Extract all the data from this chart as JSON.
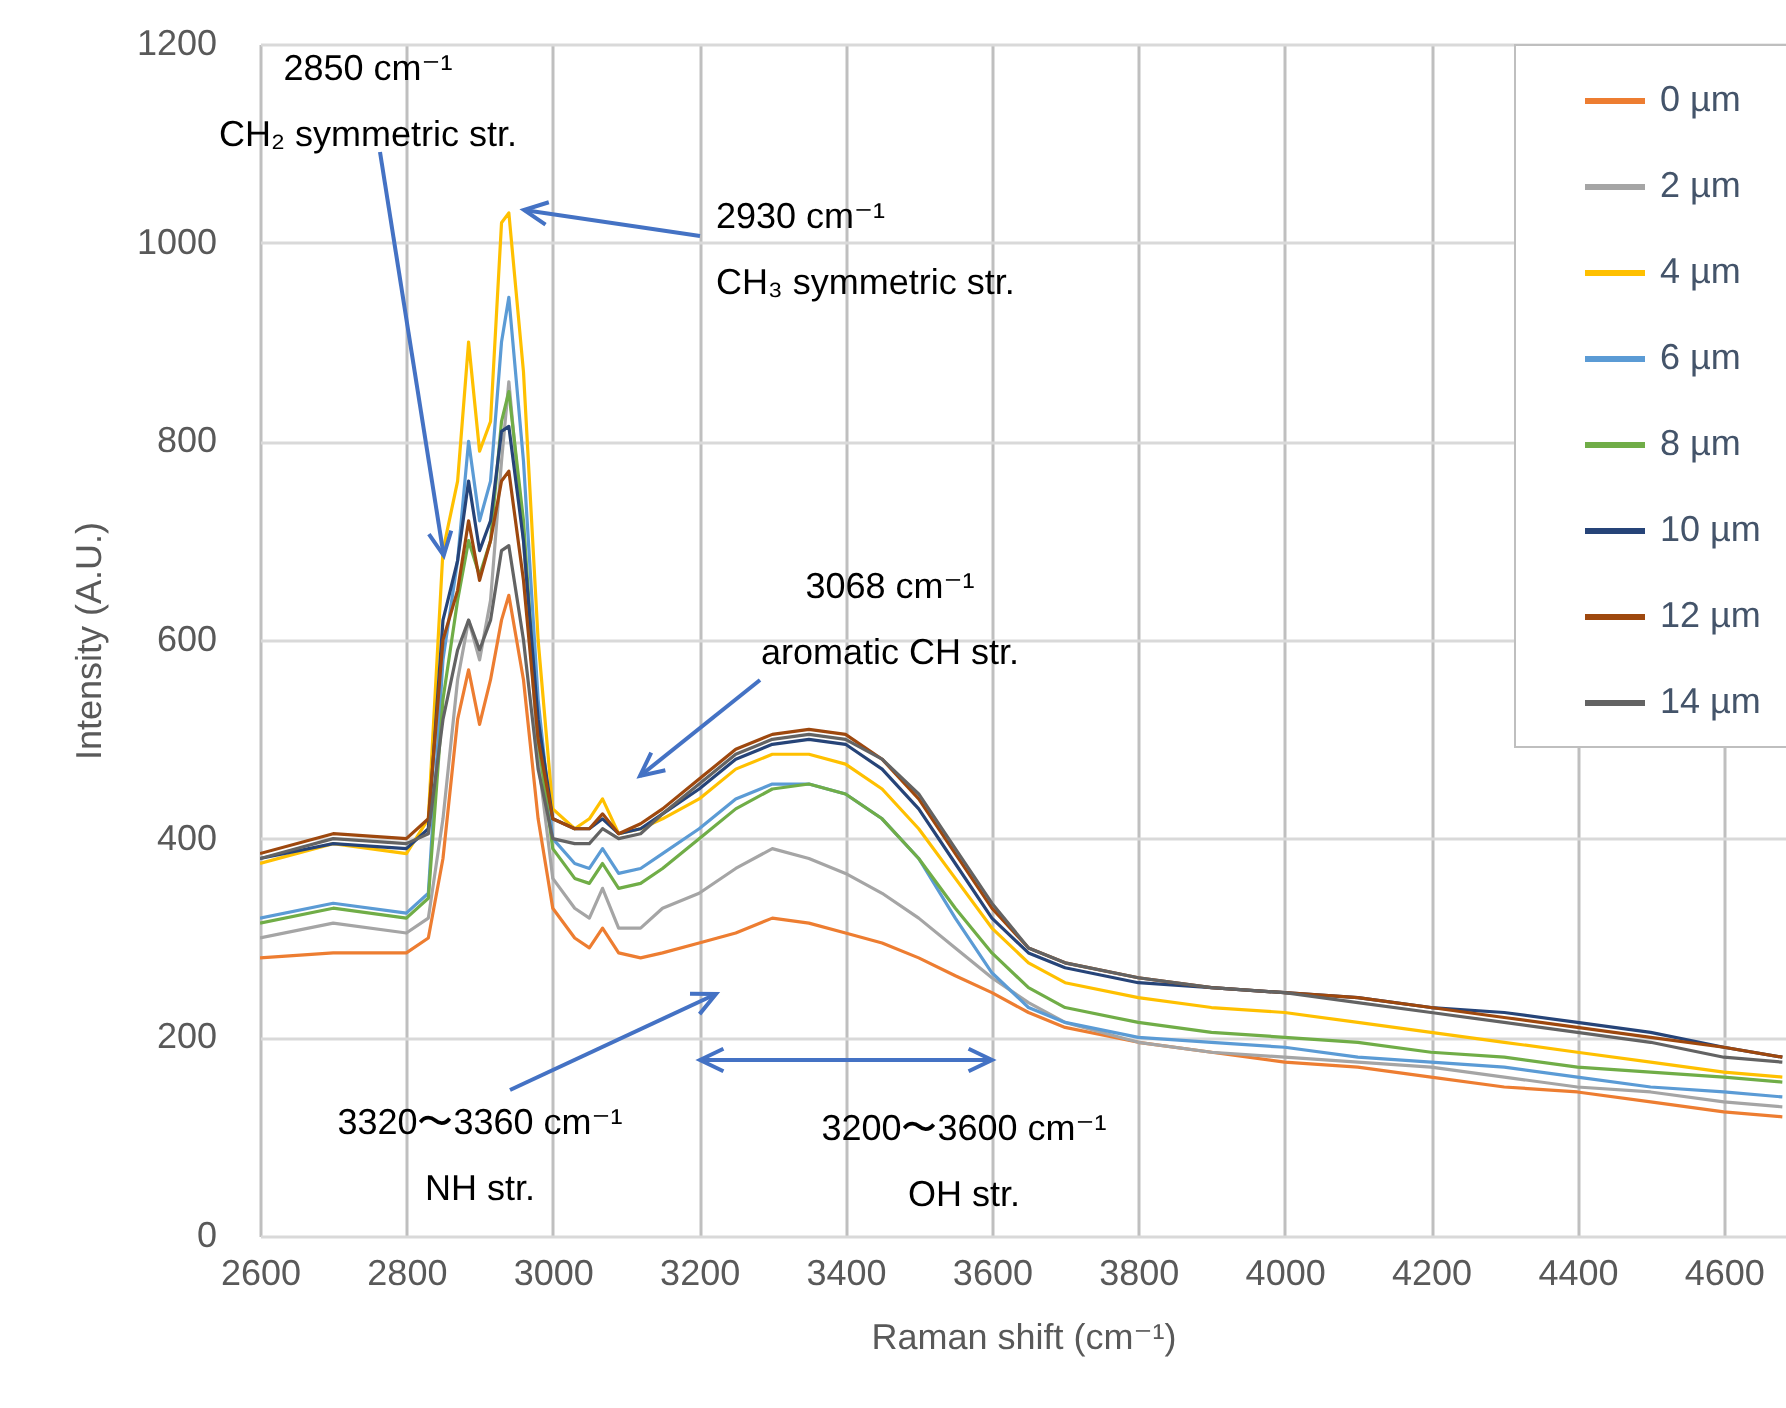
{
  "chart_data": {
    "type": "line",
    "xlabel": "Raman shift (cm⁻¹)",
    "ylabel": "Intensity (A.U.)",
    "xlim": [
      2600,
      4685
    ],
    "ylim": [
      0,
      1200
    ],
    "xticks": [
      2600,
      2800,
      3000,
      3200,
      3400,
      3600,
      3800,
      4000,
      4200,
      4400,
      4600
    ],
    "yticks": [
      0,
      200,
      400,
      600,
      800,
      1000,
      1200
    ],
    "grid": true,
    "legend": "top right",
    "x": [
      2600,
      2700,
      2800,
      2830,
      2850,
      2870,
      2885,
      2900,
      2915,
      2930,
      2940,
      2960,
      2980,
      3000,
      3030,
      3050,
      3068,
      3090,
      3120,
      3150,
      3200,
      3250,
      3300,
      3350,
      3400,
      3450,
      3500,
      3550,
      3600,
      3650,
      3700,
      3800,
      3900,
      4000,
      4100,
      4200,
      4300,
      4400,
      4500,
      4600,
      4680
    ],
    "series": [
      {
        "name": "0 µm",
        "color": "#ed7d31",
        "values": [
          280,
          285,
          285,
          300,
          380,
          520,
          570,
          515,
          560,
          620,
          645,
          560,
          420,
          330,
          300,
          290,
          310,
          285,
          280,
          285,
          295,
          305,
          320,
          315,
          305,
          295,
          280,
          262,
          245,
          225,
          210,
          195,
          185,
          175,
          170,
          160,
          150,
          145,
          135,
          125,
          120
        ]
      },
      {
        "name": "2 µm",
        "color": "#a5a5a5",
        "values": [
          300,
          315,
          305,
          320,
          420,
          560,
          620,
          580,
          640,
          780,
          860,
          700,
          480,
          360,
          330,
          320,
          350,
          310,
          310,
          330,
          345,
          370,
          390,
          380,
          365,
          345,
          320,
          290,
          260,
          235,
          215,
          195,
          185,
          180,
          175,
          170,
          160,
          150,
          145,
          135,
          130
        ]
      },
      {
        "name": "4 µm",
        "color": "#ffc000",
        "values": [
          375,
          395,
          385,
          420,
          690,
          760,
          900,
          790,
          820,
          1020,
          1030,
          870,
          600,
          430,
          410,
          420,
          440,
          405,
          410,
          420,
          440,
          470,
          485,
          485,
          475,
          450,
          410,
          360,
          310,
          275,
          255,
          240,
          230,
          225,
          215,
          205,
          195,
          185,
          175,
          165,
          160
        ]
      },
      {
        "name": "6 µm",
        "color": "#5b9bd5",
        "values": [
          320,
          335,
          325,
          345,
          580,
          680,
          800,
          720,
          760,
          900,
          945,
          780,
          540,
          400,
          375,
          370,
          390,
          365,
          370,
          385,
          410,
          440,
          455,
          455,
          445,
          420,
          380,
          320,
          265,
          230,
          215,
          200,
          195,
          190,
          180,
          175,
          170,
          160,
          150,
          145,
          140
        ]
      },
      {
        "name": "8 µm",
        "color": "#70ad47",
        "values": [
          315,
          330,
          320,
          340,
          540,
          640,
          700,
          665,
          700,
          820,
          850,
          720,
          500,
          390,
          360,
          355,
          375,
          350,
          355,
          370,
          400,
          430,
          450,
          455,
          445,
          420,
          380,
          330,
          285,
          250,
          230,
          215,
          205,
          200,
          195,
          185,
          180,
          170,
          165,
          160,
          155
        ]
      },
      {
        "name": "10 µm",
        "color": "#264478",
        "values": [
          380,
          395,
          390,
          410,
          620,
          680,
          760,
          690,
          720,
          810,
          815,
          700,
          520,
          420,
          410,
          410,
          420,
          405,
          410,
          425,
          450,
          480,
          495,
          500,
          495,
          470,
          430,
          375,
          320,
          285,
          270,
          255,
          250,
          245,
          240,
          230,
          225,
          215,
          205,
          190,
          180
        ]
      },
      {
        "name": "12 µm",
        "color": "#9e480e",
        "values": [
          385,
          405,
          400,
          420,
          600,
          650,
          720,
          660,
          700,
          760,
          770,
          660,
          500,
          420,
          410,
          410,
          425,
          405,
          415,
          430,
          460,
          490,
          505,
          510,
          505,
          480,
          440,
          385,
          330,
          290,
          275,
          260,
          250,
          245,
          240,
          230,
          220,
          210,
          200,
          190,
          180
        ]
      },
      {
        "name": "14 µm",
        "color": "#636363",
        "values": [
          380,
          400,
          395,
          405,
          520,
          590,
          620,
          590,
          620,
          690,
          695,
          600,
          470,
          400,
          395,
          395,
          410,
          400,
          405,
          425,
          455,
          485,
          500,
          505,
          500,
          480,
          445,
          390,
          335,
          290,
          275,
          260,
          250,
          245,
          235,
          225,
          215,
          205,
          195,
          180,
          175
        ]
      }
    ],
    "annotations": [
      {
        "text": "2850 cm⁻¹\nCH₂ symmetric str.",
        "x": 2851,
        "y": 685
      },
      "2930 cm⁻¹\nCH₃ symmetric str.",
      "3068 cm⁻¹\naromatic CH str.",
      "3320〜3360 cm⁻¹\nNH str.",
      "3200〜3600 cm⁻¹\nOH str."
    ]
  }
}
